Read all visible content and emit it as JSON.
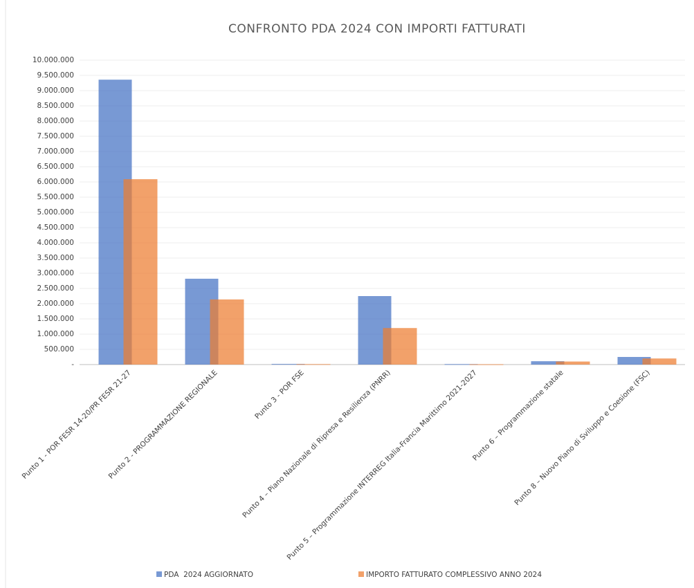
{
  "chart_data": {
    "type": "bar",
    "title": "CONFRONTO PDA 2024 CON IMPORTI FATTURATI",
    "categories": [
      "Punto 1 - POR FESR 14-20/PR FESR 21-27",
      "Punto 2 - PROGRAMMAZIONE REGIONALE",
      "Punto 3 - POR FSE",
      "Punto 4 – Piano Nazionale di Ripresa e Resilienza (PNRR)",
      "Punto 5 – Programmazione INTERREG Italia-Francia Marittimo 2021-2027",
      "Punto 6 – Programmazione statale",
      "Punto 8 – Nuovo Piano di Sviluppo e Coesione (FSC)"
    ],
    "series": [
      {
        "name": "PDA  2024 AGGIORNATO",
        "color": "#4472c4",
        "values": [
          9360000,
          2820000,
          20000,
          2250000,
          15000,
          110000,
          250000
        ]
      },
      {
        "name": "IMPORTO FATTURATO COMPLESSIVO ANNO 2024",
        "color": "#ed7d31",
        "values": [
          6090000,
          2140000,
          15000,
          1200000,
          10000,
          100000,
          200000
        ]
      }
    ],
    "ylim": [
      0,
      10000000
    ],
    "yticks": [
      {
        "value": 0,
        "label": "-"
      },
      {
        "value": 500000,
        "label": "500.000"
      },
      {
        "value": 1000000,
        "label": "1.000.000"
      },
      {
        "value": 1500000,
        "label": "1.500.000"
      },
      {
        "value": 2000000,
        "label": "2.000.000"
      },
      {
        "value": 2500000,
        "label": "2.500.000"
      },
      {
        "value": 3000000,
        "label": "3.000.000"
      },
      {
        "value": 3500000,
        "label": "3.500.000"
      },
      {
        "value": 4000000,
        "label": "4.000.000"
      },
      {
        "value": 4500000,
        "label": "4.500.000"
      },
      {
        "value": 5000000,
        "label": "5.000.000"
      },
      {
        "value": 5500000,
        "label": "5.500.000"
      },
      {
        "value": 6000000,
        "label": "6.000.000"
      },
      {
        "value": 6500000,
        "label": "6.500.000"
      },
      {
        "value": 7000000,
        "label": "7.000.000"
      },
      {
        "value": 7500000,
        "label": "7.500.000"
      },
      {
        "value": 8000000,
        "label": "8.000.000"
      },
      {
        "value": 8500000,
        "label": "8.500.000"
      },
      {
        "value": 9000000,
        "label": "9.000.000"
      },
      {
        "value": 9500000,
        "label": "9.500.000"
      },
      {
        "value": 10000000,
        "label": "10.000.000"
      }
    ],
    "grid": true
  }
}
